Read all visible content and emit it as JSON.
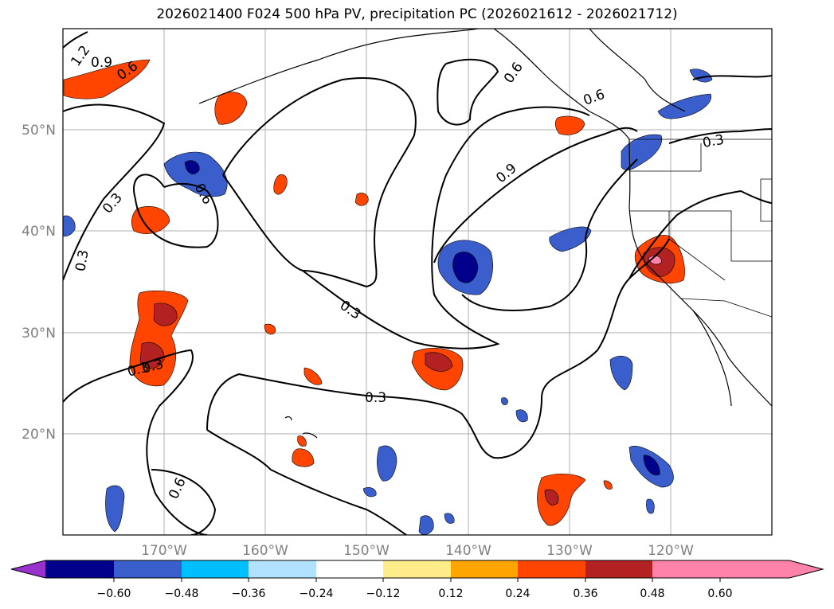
{
  "title": "2026021400 F024 500 hPa PV, precipitation PC (2026021612 - 2026021712)",
  "map": {
    "lon_range": [
      -180,
      -110
    ],
    "lat_range": [
      10,
      60
    ],
    "lat_labels": [
      "50°N",
      "40°N",
      "30°N",
      "20°N"
    ],
    "lon_labels": [
      "170°W",
      "160°W",
      "150°W",
      "140°W",
      "130°W",
      "120°W"
    ],
    "pv_contour_labels": [
      "1.2",
      "0.9",
      "0.6",
      "0.3",
      "0.6",
      "0.3",
      "0.3",
      "0.3",
      "0.3",
      "0.6",
      "0.6",
      "0.9",
      "0.6",
      "0.3",
      "0.3"
    ]
  },
  "colorbar": {
    "ticks": [
      "−0.60",
      "−0.48",
      "−0.36",
      "−0.24",
      "−0.12",
      "0.12",
      "0.24",
      "0.36",
      "0.48",
      "0.60"
    ],
    "colors": [
      "#9932CC",
      "#00008B",
      "#3A5FCD",
      "#00BFFF",
      "#B0E2FF",
      "#FFFFFF",
      "#FFEC8B",
      "#FFA500",
      "#FF4500",
      "#B22222",
      "#FF82AB"
    ]
  }
}
